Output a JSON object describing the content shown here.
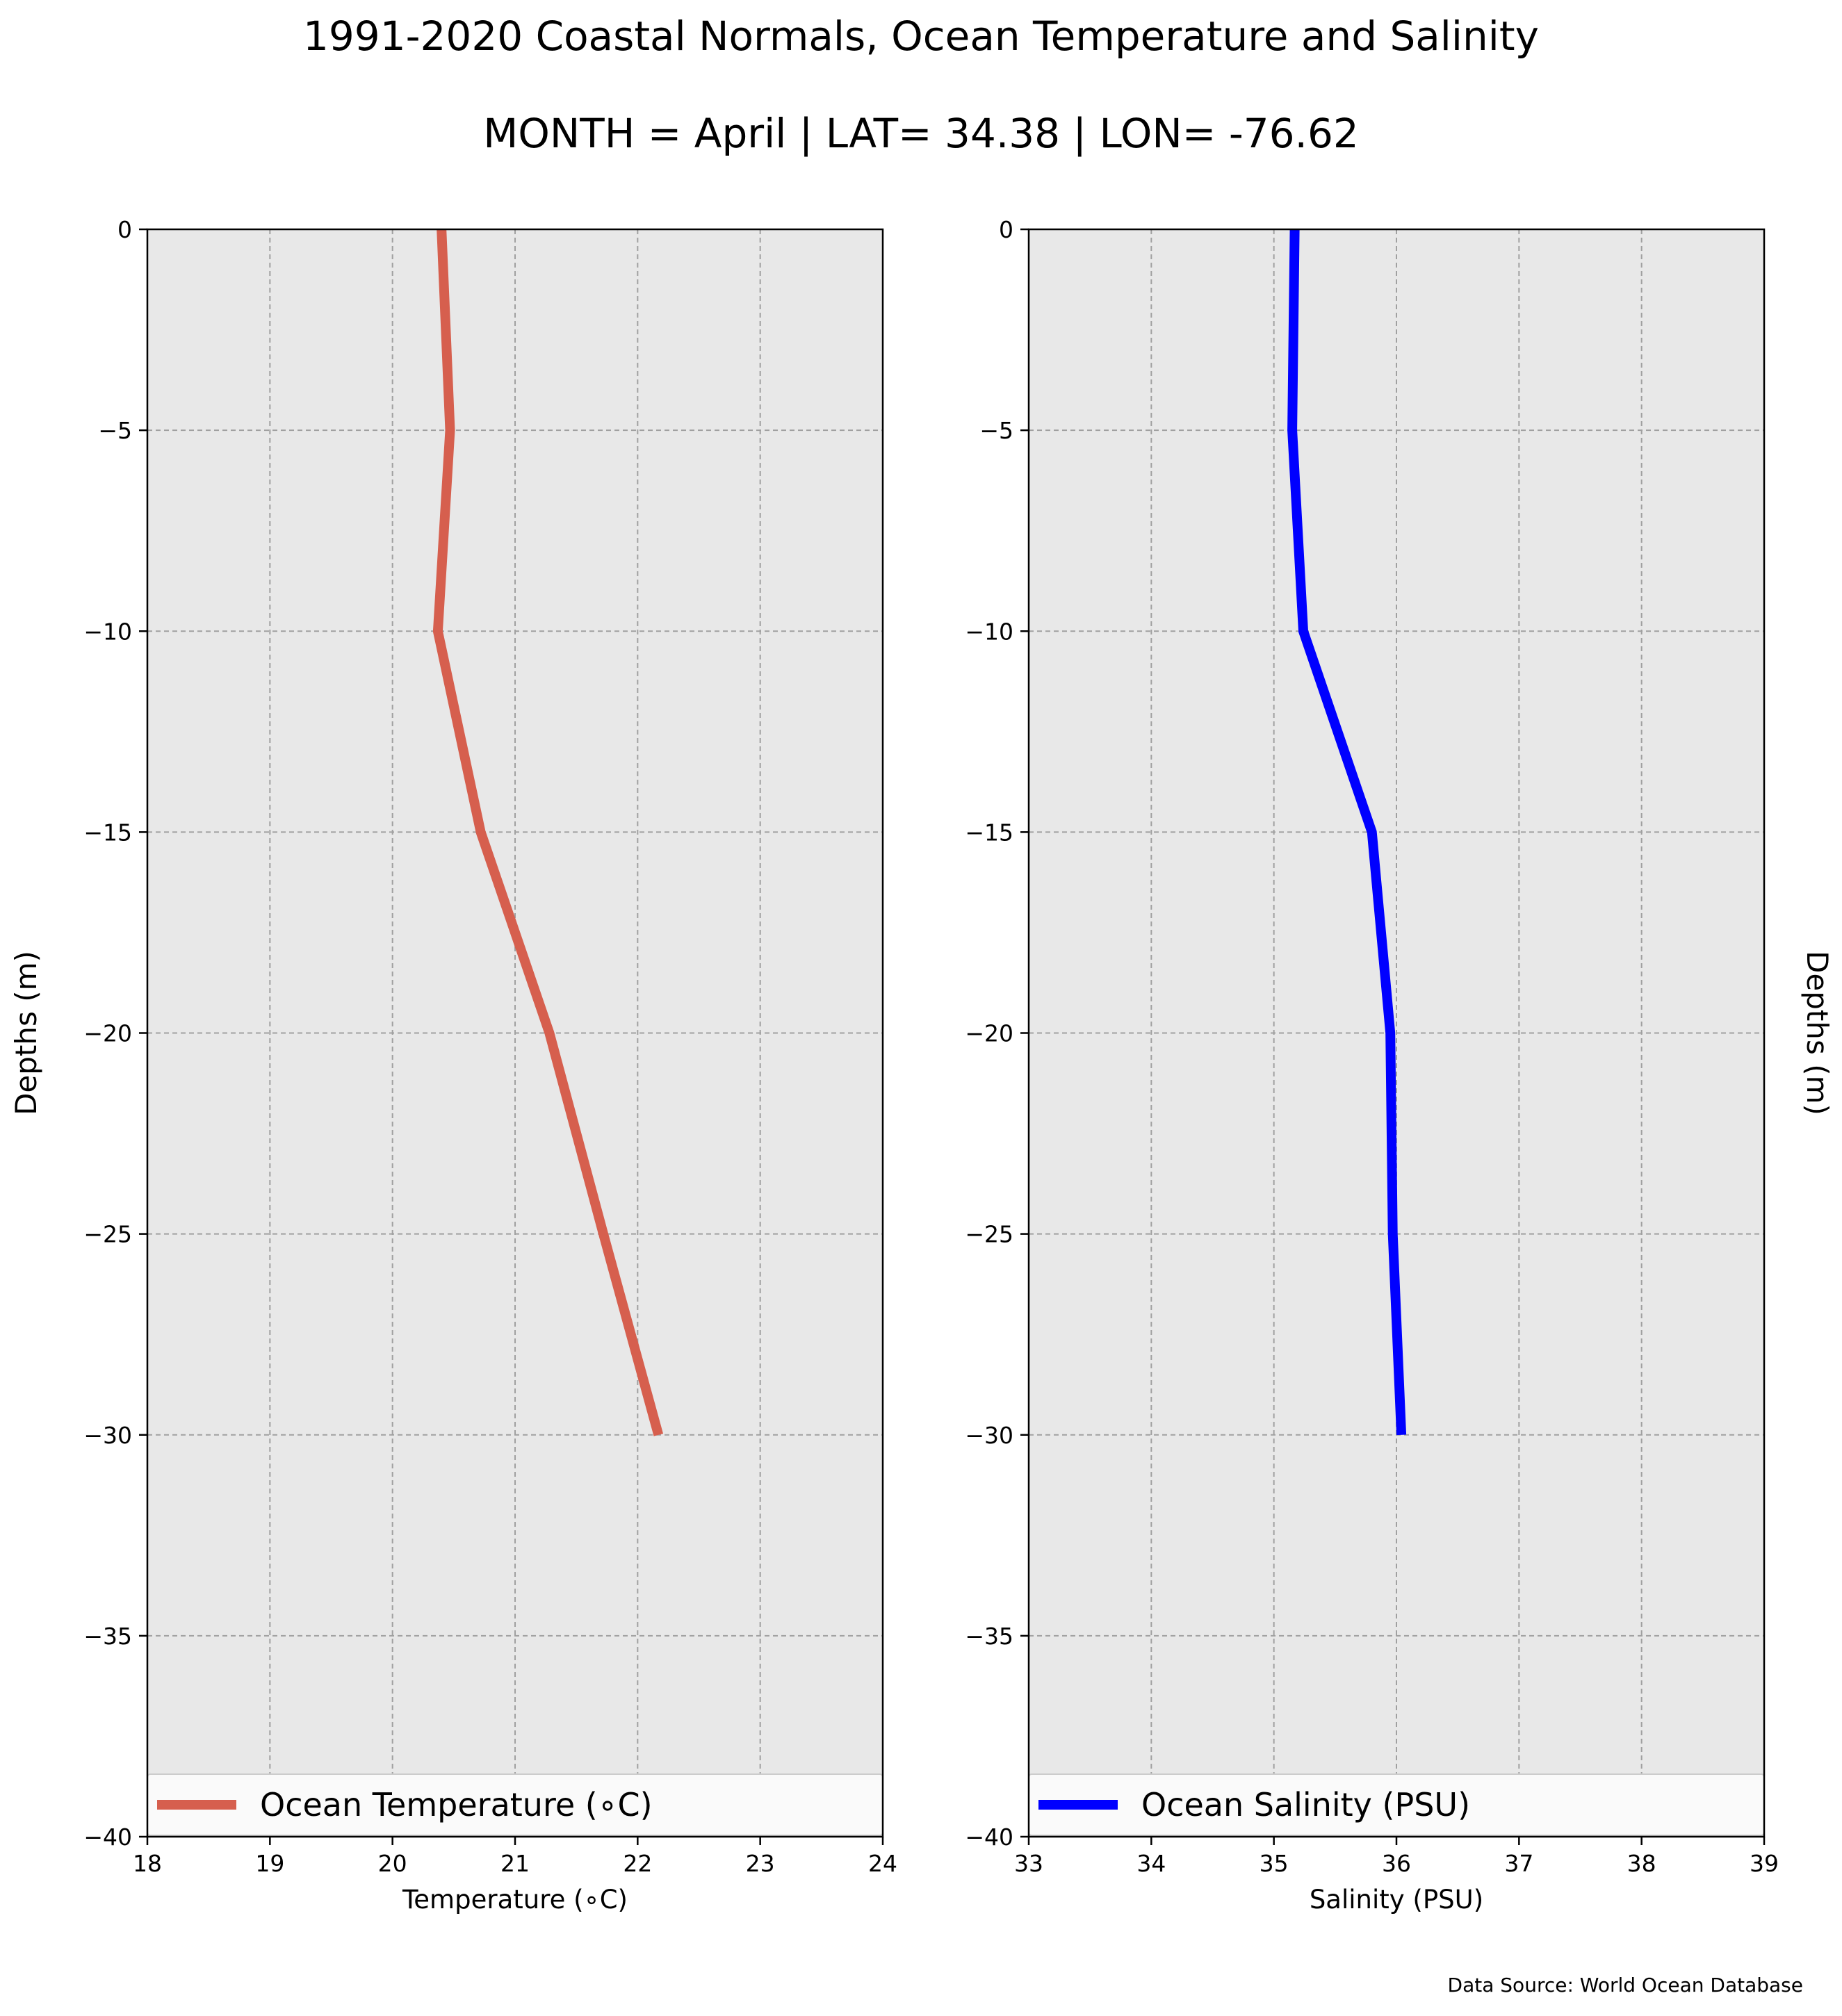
{
  "figure": {
    "title": "1991-2020 Coastal Normals, Ocean Temperature and Salinity",
    "subtitle": "MONTH = April | LAT= 34.38 | LON= -76.62",
    "source": "Data Source: World Ocean Database",
    "background_color": "#ffffff",
    "plot_background_color": "#e8e8e8",
    "grid_color": "#a0a0a0"
  },
  "chart_data": [
    {
      "type": "line",
      "xlabel": "Temperature ($^\\circ$C)",
      "xlabel_display": "Temperature (∘C)",
      "ylabel": "Depths (m)",
      "xlim": [
        18,
        24
      ],
      "ylim": [
        -40,
        0
      ],
      "xticks": [
        "18",
        "19",
        "20",
        "21",
        "22",
        "23",
        "24"
      ],
      "yticks": [
        "0",
        "−5",
        "−10",
        "−15",
        "−20",
        "−25",
        "−30",
        "−35",
        "−40"
      ],
      "grid": true,
      "legend_position": "lower-center",
      "series": [
        {
          "name": "Ocean Temperature (∘C)",
          "color": "#d65f4e",
          "x": [
            20.4,
            20.47,
            20.37,
            20.72,
            21.28,
            21.72,
            22.17
          ],
          "y": [
            0,
            -5,
            -10,
            -15,
            -20,
            -25,
            -30
          ]
        }
      ]
    },
    {
      "type": "line",
      "xlabel": "Salinity (PSU)",
      "ylabel": "Depths (m)",
      "xlim": [
        33,
        39
      ],
      "ylim": [
        -40,
        0
      ],
      "xticks": [
        "33",
        "34",
        "35",
        "36",
        "37",
        "38",
        "39"
      ],
      "yticks": [
        "0",
        "−5",
        "−10",
        "−15",
        "−20",
        "−25",
        "−30",
        "−35",
        "−40"
      ],
      "grid": true,
      "legend_position": "lower-center",
      "series": [
        {
          "name": "Ocean Salinity (PSU)",
          "color": "#0000ff",
          "x": [
            35.17,
            35.15,
            35.24,
            35.8,
            35.95,
            35.97,
            36.04
          ],
          "y": [
            0,
            -5,
            -10,
            -15,
            -20,
            -25,
            -30
          ]
        }
      ]
    }
  ]
}
